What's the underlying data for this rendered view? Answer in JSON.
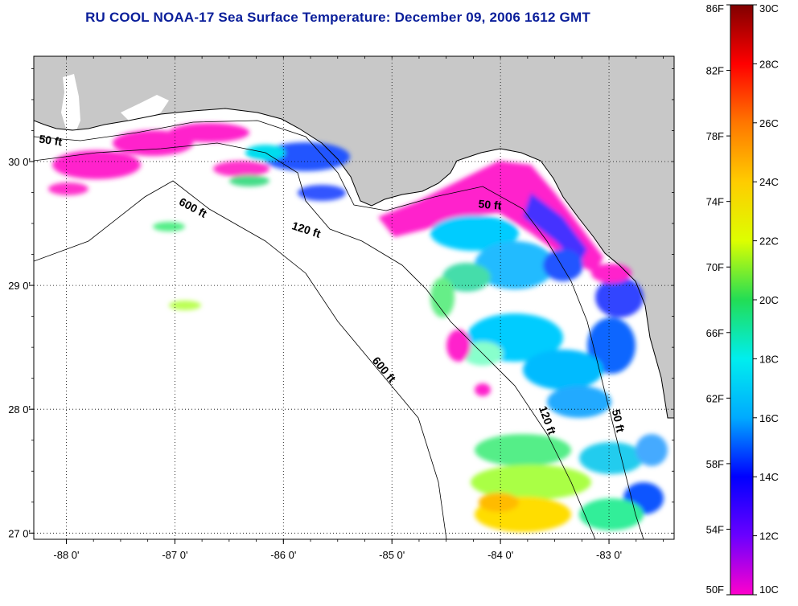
{
  "title": "RU COOL  NOAA-17  Sea Surface Temperature:  December 09, 2006 1612 GMT",
  "colors": {
    "title": "#0a1e9a",
    "land": "#c8c8c8",
    "water": "#ffffff"
  },
  "map": {
    "lon_range": [
      -88.3,
      -82.4
    ],
    "lat_range": [
      26.95,
      30.85
    ],
    "grid": true,
    "lon_ticks": [
      {
        "value": -88,
        "label": "-88 0'"
      },
      {
        "value": -87,
        "label": "-87 0'"
      },
      {
        "value": -86,
        "label": "-86 0'"
      },
      {
        "value": -85,
        "label": "-85 0'"
      },
      {
        "value": -84,
        "label": "-84 0'"
      },
      {
        "value": -83,
        "label": "-83 0'"
      }
    ],
    "lat_ticks": [
      {
        "value": 30,
        "label": "30 0'"
      },
      {
        "value": 29,
        "label": "29 0'"
      },
      {
        "value": 28,
        "label": "28 0'"
      },
      {
        "value": 27,
        "label": "27 0'"
      }
    ],
    "contour_labels": [
      {
        "text": "50 ft",
        "lon": -88.15,
        "lat": 30.14,
        "rotate": 8
      },
      {
        "text": "600 ft",
        "lon": -86.85,
        "lat": 29.6,
        "rotate": 28
      },
      {
        "text": "120 ft",
        "lon": -85.8,
        "lat": 29.42,
        "rotate": 18
      },
      {
        "text": "50 ft",
        "lon": -84.1,
        "lat": 29.62,
        "rotate": 5
      },
      {
        "text": "600 ft",
        "lon": -85.1,
        "lat": 28.3,
        "rotate": 50
      },
      {
        "text": "120 ft",
        "lon": -83.6,
        "lat": 27.9,
        "rotate": 70
      },
      {
        "text": "50 ft",
        "lon": -82.95,
        "lat": 27.9,
        "rotate": 78
      }
    ]
  },
  "colorbar": {
    "f_labels": [
      {
        "value": 86,
        "label": "86F"
      },
      {
        "value": 82,
        "label": "82F"
      },
      {
        "value": 78,
        "label": "78F"
      },
      {
        "value": 74,
        "label": "74F"
      },
      {
        "value": 70,
        "label": "70F"
      },
      {
        "value": 66,
        "label": "66F"
      },
      {
        "value": 62,
        "label": "62F"
      },
      {
        "value": 58,
        "label": "58F"
      },
      {
        "value": 54,
        "label": "54F"
      },
      {
        "value": 50,
        "label": "50F"
      }
    ],
    "c_labels": [
      {
        "value": 30,
        "label": "30C"
      },
      {
        "value": 28,
        "label": "28C"
      },
      {
        "value": 26,
        "label": "26C"
      },
      {
        "value": 24,
        "label": "24C"
      },
      {
        "value": 22,
        "label": "22C"
      },
      {
        "value": 20,
        "label": "20C"
      },
      {
        "value": 18,
        "label": "18C"
      },
      {
        "value": 16,
        "label": "16C"
      },
      {
        "value": 14,
        "label": "14C"
      },
      {
        "value": 12,
        "label": "12C"
      },
      {
        "value": 10,
        "label": "10C"
      }
    ],
    "stops": [
      "#ff00cc",
      "#6a00ff",
      "#0000ff",
      "#00aaff",
      "#00eeee",
      "#22dd55",
      "#ddff00",
      "#ffcc00",
      "#ff7700",
      "#ff0000",
      "#800000"
    ]
  }
}
